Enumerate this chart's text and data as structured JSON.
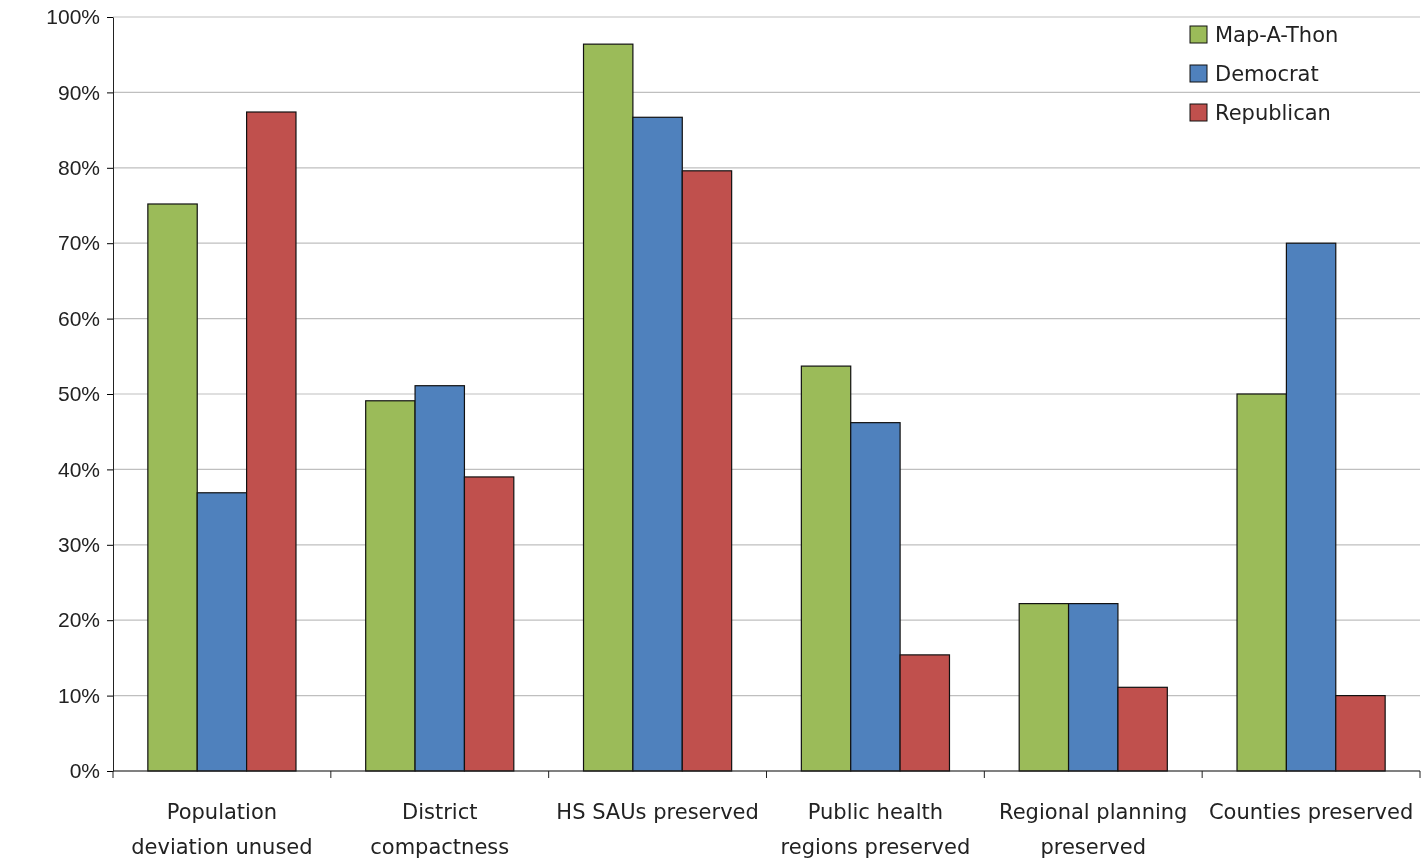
{
  "chart_data": {
    "type": "bar",
    "categories": [
      "Population deviation unused",
      "District compactness",
      "HS SAUs preserved",
      "Public health regions preserved",
      "Regional planning preserved",
      "Counties preserved"
    ],
    "series": [
      {
        "name": "Map-A-Thon",
        "color": "#9bbb59",
        "values": [
          75.2,
          49.1,
          96.4,
          53.7,
          22.2,
          50
        ]
      },
      {
        "name": "Democrat",
        "color": "#4f81bd",
        "values": [
          36.9,
          51.1,
          86.7,
          46.2,
          22.2,
          70
        ]
      },
      {
        "name": "Republican",
        "color": "#c0504d",
        "values": [
          87.4,
          39,
          79.6,
          15.4,
          11.1,
          10
        ]
      }
    ],
    "ylim": [
      0,
      100
    ],
    "yticks": [
      {
        "value": 0,
        "label": "0%"
      },
      {
        "value": 10,
        "label": "10%"
      },
      {
        "value": 20,
        "label": "20%"
      },
      {
        "value": 30,
        "label": "30%"
      },
      {
        "value": 40,
        "label": "40%"
      },
      {
        "value": 50,
        "label": "50%"
      },
      {
        "value": 60,
        "label": "60%"
      },
      {
        "value": 70,
        "label": "70%"
      },
      {
        "value": 80,
        "label": "80%"
      },
      {
        "value": 90,
        "label": "90%"
      },
      {
        "value": 100,
        "label": "100%"
      }
    ],
    "grid": "y",
    "legend": "top right"
  }
}
